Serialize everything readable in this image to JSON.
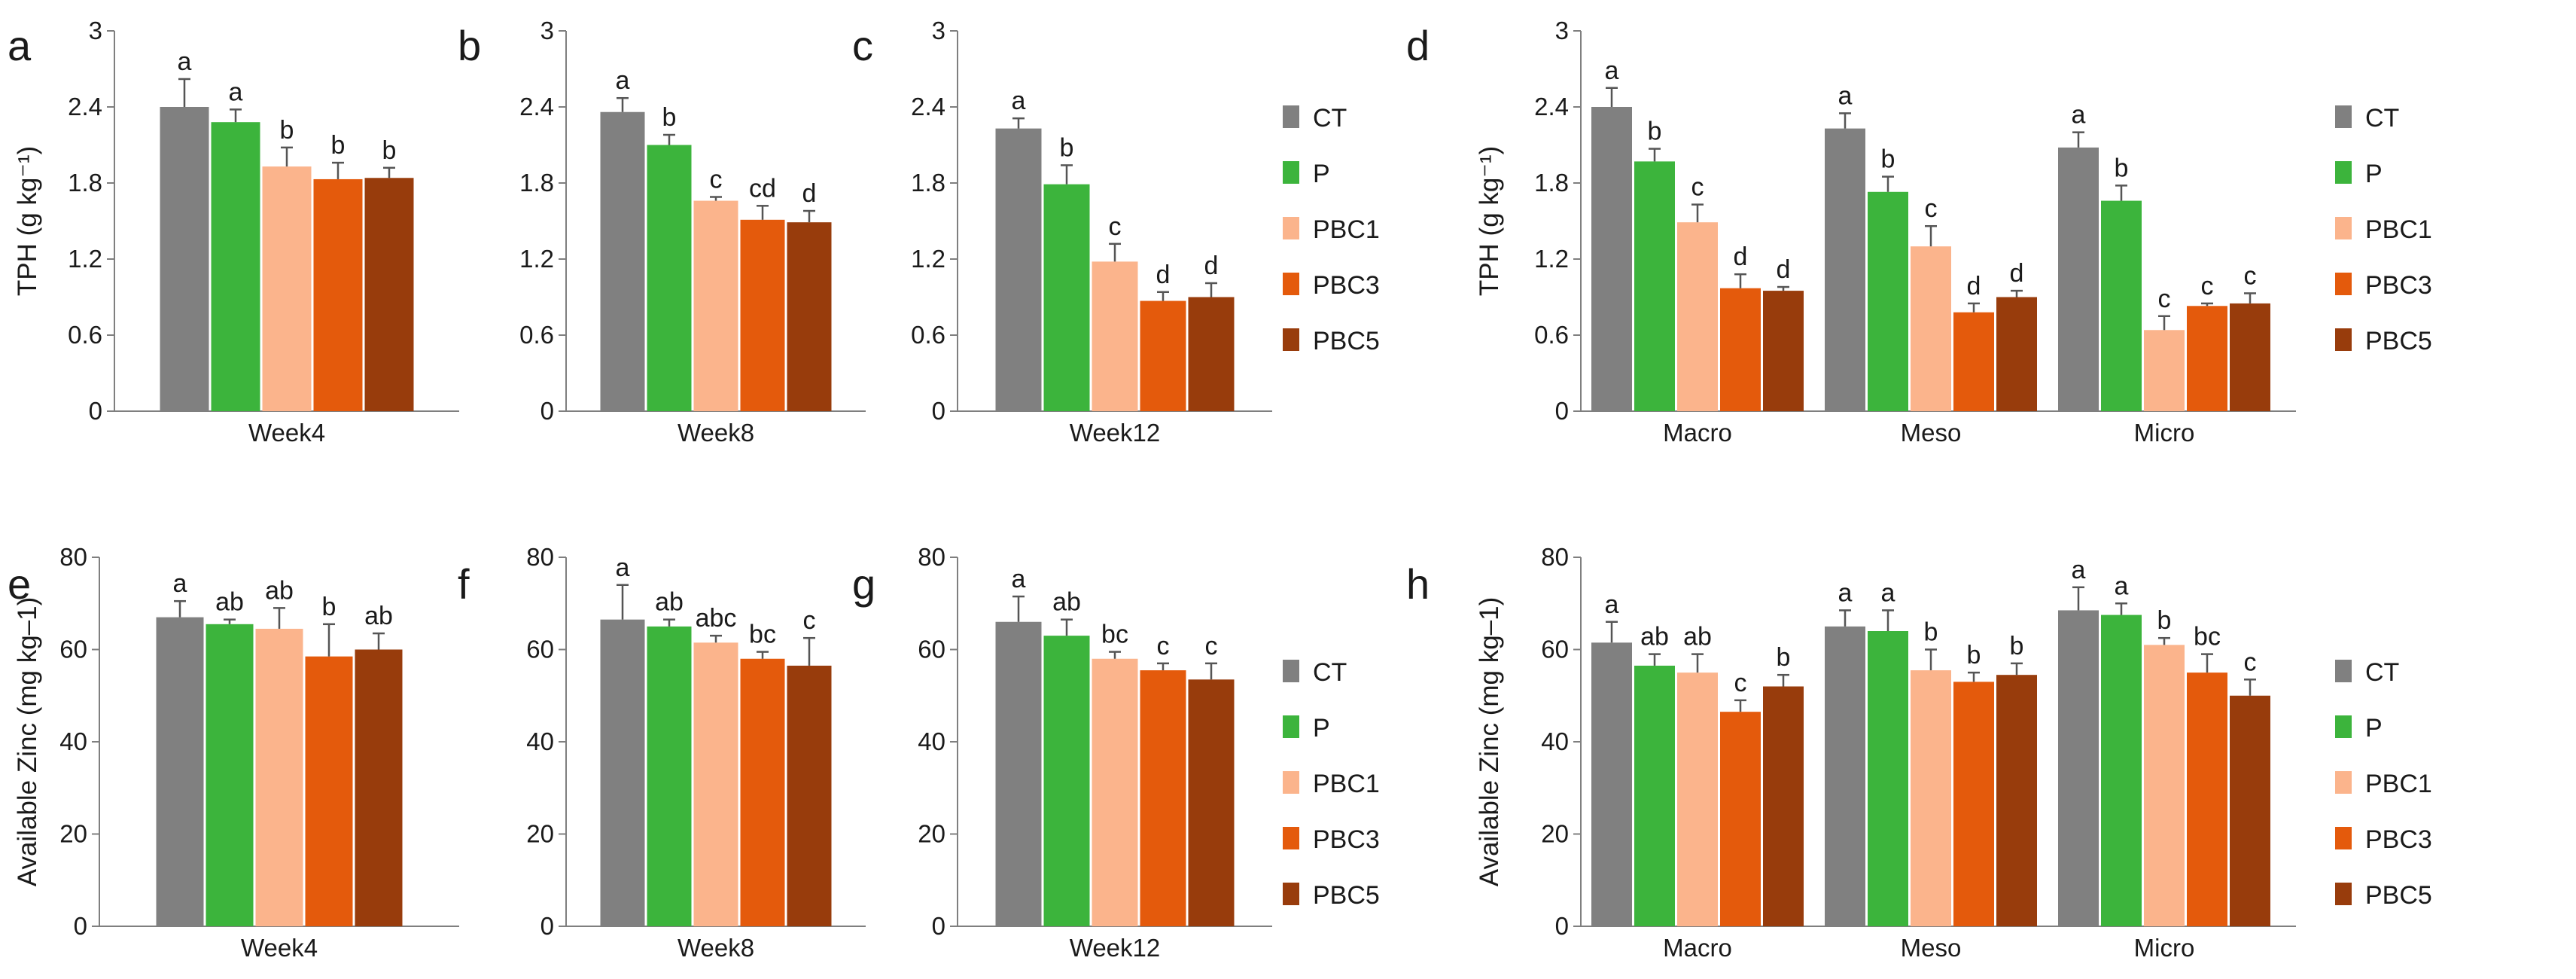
{
  "colors": {
    "CT": "#808080",
    "P": "#3cb43c",
    "PBC1": "#fbb48c",
    "PBC3": "#e45a0c",
    "PBC5": "#983c0c"
  },
  "legend_labels": [
    "CT",
    "P",
    "PBC1",
    "PBC3",
    "PBC5"
  ],
  "chart_data": [
    {
      "id": "a",
      "type": "bar",
      "letter": "a",
      "ylabel": "TPH (g kg⁻¹)",
      "ylim": [
        0,
        3
      ],
      "yticks": [
        "0",
        "0.6",
        "1.2",
        "1.8",
        "2.4",
        "3"
      ],
      "categories": [
        "Week4"
      ],
      "series": [
        {
          "name": "CT",
          "values": [
            2.4
          ],
          "errors": [
            0.22
          ],
          "sig": [
            "a"
          ]
        },
        {
          "name": "P",
          "values": [
            2.28
          ],
          "errors": [
            0.1
          ],
          "sig": [
            "a"
          ]
        },
        {
          "name": "PBC1",
          "values": [
            1.93
          ],
          "errors": [
            0.15
          ],
          "sig": [
            "b"
          ]
        },
        {
          "name": "PBC3",
          "values": [
            1.83
          ],
          "errors": [
            0.13
          ],
          "sig": [
            "b"
          ]
        },
        {
          "name": "PBC5",
          "values": [
            1.84
          ],
          "errors": [
            0.08
          ],
          "sig": [
            "b"
          ]
        }
      ]
    },
    {
      "id": "b",
      "type": "bar",
      "letter": "b",
      "ylabel": "",
      "ylim": [
        0,
        3
      ],
      "yticks": [
        "0",
        "0.6",
        "1.2",
        "1.8",
        "2.4",
        "3"
      ],
      "categories": [
        "Week8"
      ],
      "series": [
        {
          "name": "CT",
          "values": [
            2.36
          ],
          "errors": [
            0.11
          ],
          "sig": [
            "a"
          ]
        },
        {
          "name": "P",
          "values": [
            2.1
          ],
          "errors": [
            0.08
          ],
          "sig": [
            "b"
          ]
        },
        {
          "name": "PBC1",
          "values": [
            1.66
          ],
          "errors": [
            0.03
          ],
          "sig": [
            "c"
          ]
        },
        {
          "name": "PBC3",
          "values": [
            1.51
          ],
          "errors": [
            0.11
          ],
          "sig": [
            "cd"
          ]
        },
        {
          "name": "PBC5",
          "values": [
            1.49
          ],
          "errors": [
            0.09
          ],
          "sig": [
            "d"
          ]
        }
      ]
    },
    {
      "id": "c",
      "type": "bar",
      "letter": "c",
      "ylabel": "",
      "ylim": [
        0,
        3
      ],
      "yticks": [
        "0",
        "0.6",
        "1.2",
        "1.8",
        "2.4",
        "3"
      ],
      "categories": [
        "Week12"
      ],
      "series": [
        {
          "name": "CT",
          "values": [
            2.23
          ],
          "errors": [
            0.08
          ],
          "sig": [
            "a"
          ]
        },
        {
          "name": "P",
          "values": [
            1.79
          ],
          "errors": [
            0.15
          ],
          "sig": [
            "b"
          ]
        },
        {
          "name": "PBC1",
          "values": [
            1.18
          ],
          "errors": [
            0.14
          ],
          "sig": [
            "c"
          ]
        },
        {
          "name": "PBC3",
          "values": [
            0.87
          ],
          "errors": [
            0.07
          ],
          "sig": [
            "d"
          ]
        },
        {
          "name": "PBC5",
          "values": [
            0.9
          ],
          "errors": [
            0.11
          ],
          "sig": [
            "d"
          ]
        }
      ]
    },
    {
      "id": "d",
      "type": "bar",
      "letter": "d",
      "ylabel": "TPH (g kg⁻¹)",
      "ylim": [
        0,
        3
      ],
      "yticks": [
        "0",
        "0.6",
        "1.2",
        "1.8",
        "2.4",
        "3"
      ],
      "categories": [
        "Macro",
        "Meso",
        "Micro"
      ],
      "series": [
        {
          "name": "CT",
          "values": [
            2.4,
            2.23,
            2.08
          ],
          "errors": [
            0.15,
            0.12,
            0.12
          ],
          "sig": [
            "a",
            "a",
            "a"
          ]
        },
        {
          "name": "P",
          "values": [
            1.97,
            1.73,
            1.66
          ],
          "errors": [
            0.1,
            0.12,
            0.12
          ],
          "sig": [
            "b",
            "b",
            "b"
          ]
        },
        {
          "name": "PBC1",
          "values": [
            1.49,
            1.3,
            0.64
          ],
          "errors": [
            0.14,
            0.16,
            0.11
          ],
          "sig": [
            "c",
            "c",
            "c"
          ]
        },
        {
          "name": "PBC3",
          "values": [
            0.97,
            0.78,
            0.83
          ],
          "errors": [
            0.11,
            0.07,
            0.02
          ],
          "sig": [
            "d",
            "d",
            "c"
          ]
        },
        {
          "name": "PBC5",
          "values": [
            0.95,
            0.9,
            0.85
          ],
          "errors": [
            0.03,
            0.05,
            0.08
          ],
          "sig": [
            "d",
            "d",
            "c"
          ]
        }
      ]
    },
    {
      "id": "e",
      "type": "bar",
      "letter": "e",
      "ylabel": "Available Zinc (mg kg–1)",
      "ylim": [
        0,
        80
      ],
      "yticks": [
        "0",
        "20",
        "40",
        "60",
        "80"
      ],
      "categories": [
        "Week4"
      ],
      "series": [
        {
          "name": "CT",
          "values": [
            67
          ],
          "errors": [
            3.5
          ],
          "sig": [
            "a"
          ]
        },
        {
          "name": "P",
          "values": [
            65.5
          ],
          "errors": [
            1
          ],
          "sig": [
            "ab"
          ]
        },
        {
          "name": "PBC1",
          "values": [
            64.5
          ],
          "errors": [
            4.5
          ],
          "sig": [
            "ab"
          ]
        },
        {
          "name": "PBC3",
          "values": [
            58.5
          ],
          "errors": [
            7
          ],
          "sig": [
            "b"
          ]
        },
        {
          "name": "PBC5",
          "values": [
            60
          ],
          "errors": [
            3.5
          ],
          "sig": [
            "ab"
          ]
        }
      ]
    },
    {
      "id": "f",
      "type": "bar",
      "letter": "f",
      "ylabel": "",
      "ylim": [
        0,
        80
      ],
      "yticks": [
        "0",
        "20",
        "40",
        "60",
        "80"
      ],
      "categories": [
        "Week8"
      ],
      "series": [
        {
          "name": "CT",
          "values": [
            66.5
          ],
          "errors": [
            7.5
          ],
          "sig": [
            "a"
          ]
        },
        {
          "name": "P",
          "values": [
            65
          ],
          "errors": [
            1.5
          ],
          "sig": [
            "ab"
          ]
        },
        {
          "name": "PBC1",
          "values": [
            61.5
          ],
          "errors": [
            1.5
          ],
          "sig": [
            "abc"
          ]
        },
        {
          "name": "PBC3",
          "values": [
            58
          ],
          "errors": [
            1.5
          ],
          "sig": [
            "bc"
          ]
        },
        {
          "name": "PBC5",
          "values": [
            56.5
          ],
          "errors": [
            6
          ],
          "sig": [
            "c"
          ]
        }
      ]
    },
    {
      "id": "g",
      "type": "bar",
      "letter": "g",
      "ylabel": "",
      "ylim": [
        0,
        80
      ],
      "yticks": [
        "0",
        "20",
        "40",
        "60",
        "80"
      ],
      "categories": [
        "Week12"
      ],
      "series": [
        {
          "name": "CT",
          "values": [
            66
          ],
          "errors": [
            5.5
          ],
          "sig": [
            "a"
          ]
        },
        {
          "name": "P",
          "values": [
            63
          ],
          "errors": [
            3.5
          ],
          "sig": [
            "ab"
          ]
        },
        {
          "name": "PBC1",
          "values": [
            58
          ],
          "errors": [
            1.5
          ],
          "sig": [
            "bc"
          ]
        },
        {
          "name": "PBC3",
          "values": [
            55.5
          ],
          "errors": [
            1.5
          ],
          "sig": [
            "c"
          ]
        },
        {
          "name": "PBC5",
          "values": [
            53.5
          ],
          "errors": [
            3.5
          ],
          "sig": [
            "c"
          ]
        }
      ]
    },
    {
      "id": "h",
      "type": "bar",
      "letter": "h",
      "ylabel": "Available Zinc (mg kg–1)",
      "ylim": [
        0,
        80
      ],
      "yticks": [
        "0",
        "20",
        "40",
        "60",
        "80"
      ],
      "categories": [
        "Macro",
        "Meso",
        "Micro"
      ],
      "series": [
        {
          "name": "CT",
          "values": [
            61.5,
            65,
            68.5
          ],
          "errors": [
            4.5,
            3.5,
            5
          ],
          "sig": [
            "a",
            "a",
            "a"
          ]
        },
        {
          "name": "P",
          "values": [
            56.5,
            64,
            67.5
          ],
          "errors": [
            2.5,
            4.5,
            2.5
          ],
          "sig": [
            "ab",
            "a",
            "a"
          ]
        },
        {
          "name": "PBC1",
          "values": [
            55,
            55.5,
            61
          ],
          "errors": [
            4,
            4.5,
            1.5
          ],
          "sig": [
            "ab",
            "b",
            "b"
          ]
        },
        {
          "name": "PBC3",
          "values": [
            46.5,
            53,
            55
          ],
          "errors": [
            2.5,
            2,
            4
          ],
          "sig": [
            "c",
            "b",
            "bc"
          ]
        },
        {
          "name": "PBC5",
          "values": [
            52,
            54.5,
            50
          ],
          "errors": [
            2.5,
            2.5,
            3.5
          ],
          "sig": [
            "b",
            "b",
            "c"
          ]
        }
      ]
    }
  ]
}
